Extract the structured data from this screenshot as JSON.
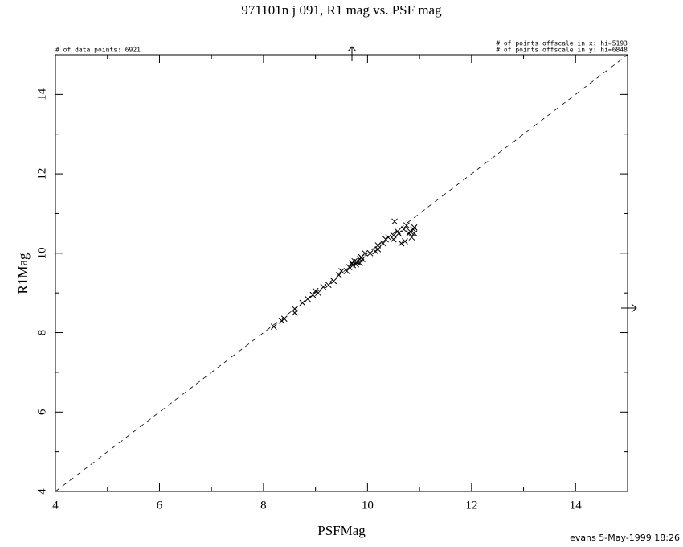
{
  "chart_data": {
    "type": "scatter",
    "title": "971101n j 091, R1 mag vs. PSF mag",
    "xlabel": "PSFMag",
    "ylabel": "R1Mag",
    "annotations": [
      "# of data points: 6921",
      "# of points offscale in x: hi=5193",
      "# of points offscale in y: hi=6848"
    ],
    "footer": "evans  5-May-1999 18:26",
    "xlim": [
      4,
      15
    ],
    "ylim": [
      4,
      15
    ],
    "xticks": [
      4,
      6,
      8,
      10,
      12,
      14
    ],
    "yticks": [
      4,
      6,
      8,
      10,
      12,
      14
    ],
    "xminorticks": [
      5,
      7,
      9,
      11,
      13,
      15
    ],
    "yminorticks": [
      5,
      7,
      9,
      11,
      13,
      15
    ],
    "color": "#000000",
    "x": [
      8.2,
      8.35,
      8.4,
      8.6,
      8.6,
      8.75,
      8.85,
      8.95,
      9.0,
      9.05,
      9.15,
      9.25,
      9.35,
      9.45,
      9.5,
      9.6,
      9.65,
      9.7,
      9.72,
      9.75,
      9.78,
      9.8,
      9.85,
      9.85,
      9.88,
      9.9,
      9.95,
      10.05,
      10.15,
      10.2,
      10.2,
      10.3,
      10.35,
      10.4,
      10.5,
      10.5,
      10.52,
      10.58,
      10.6,
      10.65,
      10.7,
      10.72,
      10.75,
      10.8,
      10.82,
      10.85,
      10.88,
      10.9,
      10.9
    ],
    "values": [
      8.15,
      8.3,
      8.35,
      8.5,
      8.6,
      8.75,
      8.85,
      8.95,
      9.05,
      9.0,
      9.15,
      9.2,
      9.3,
      9.45,
      9.55,
      9.55,
      9.65,
      9.75,
      9.7,
      9.8,
      9.72,
      9.78,
      9.85,
      9.75,
      9.9,
      9.85,
      10.0,
      10.0,
      10.05,
      10.1,
      10.2,
      10.25,
      10.35,
      10.4,
      10.35,
      10.45,
      10.8,
      10.55,
      10.5,
      10.25,
      10.6,
      10.3,
      10.7,
      10.5,
      10.55,
      10.4,
      10.6,
      10.5,
      10.65
    ]
  }
}
